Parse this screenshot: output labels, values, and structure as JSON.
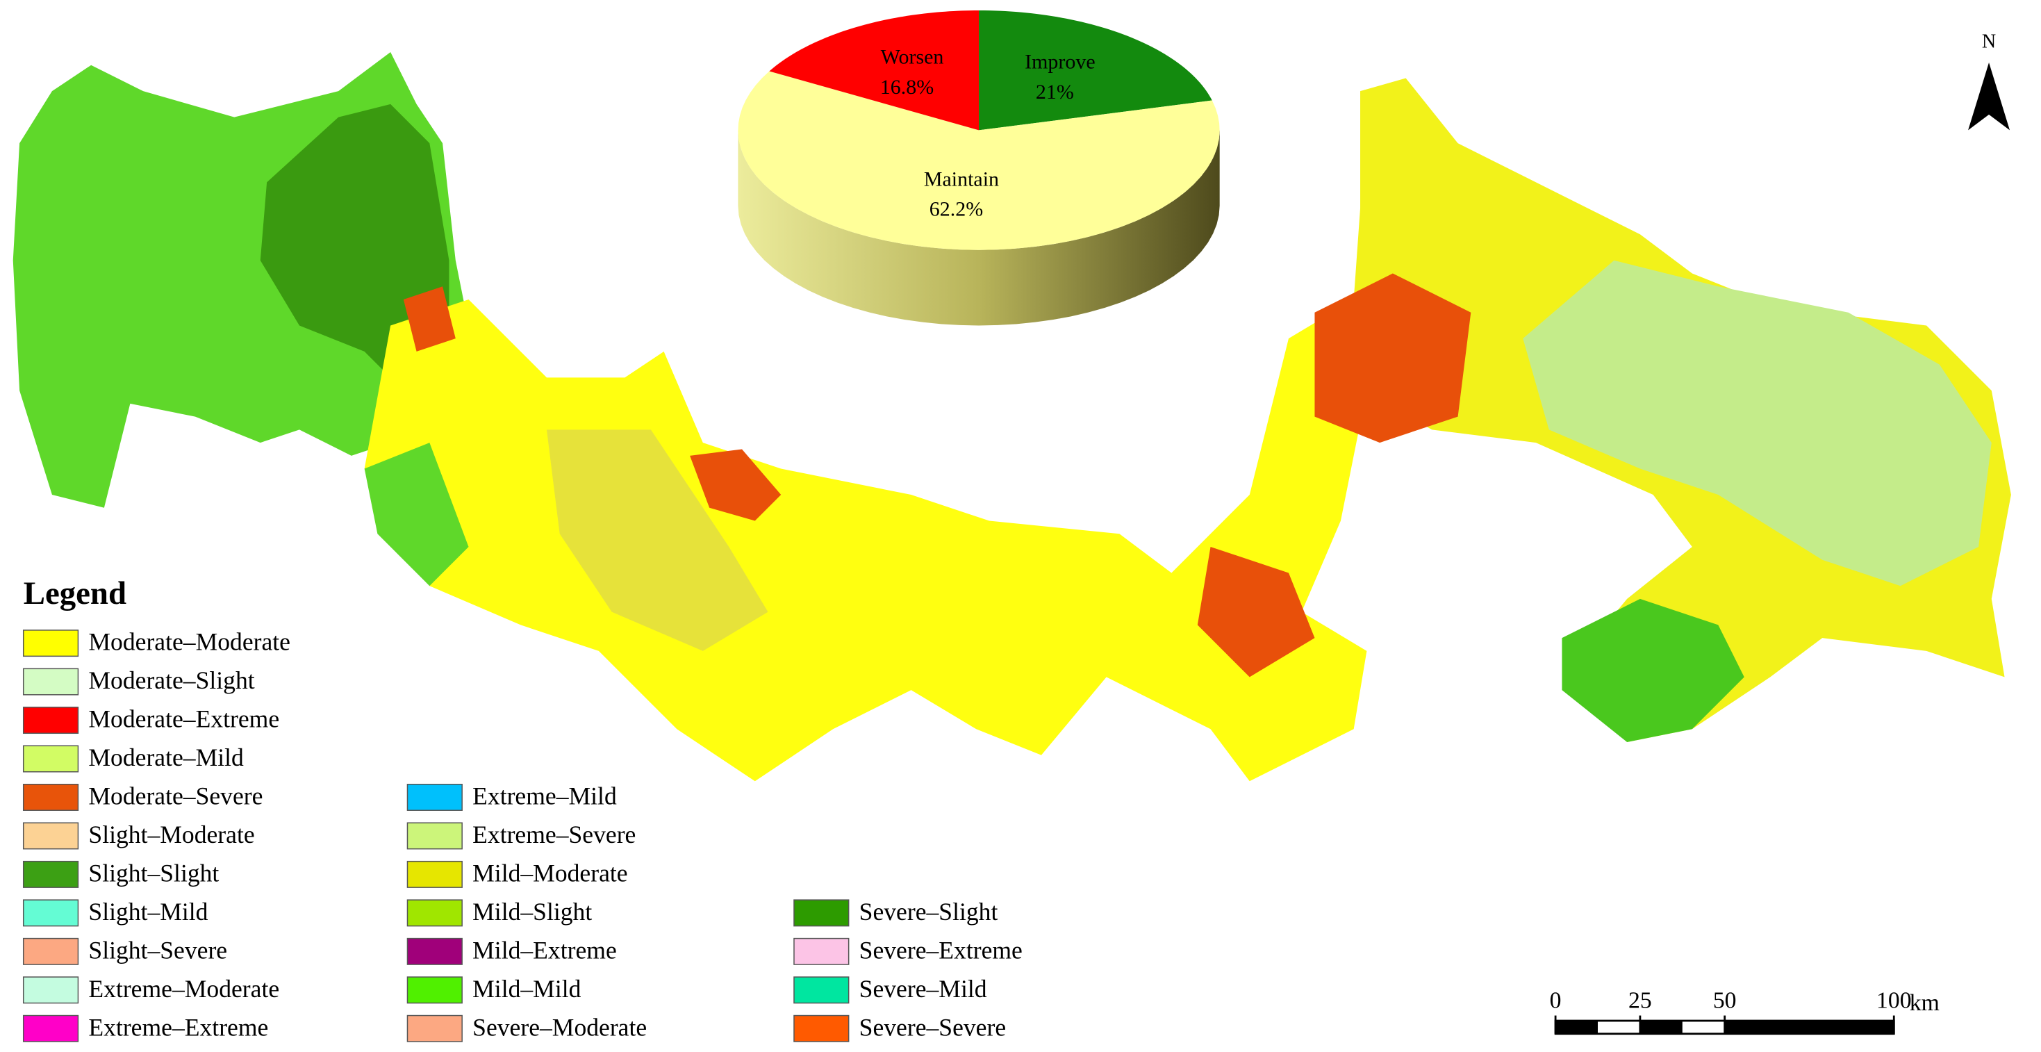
{
  "legend": {
    "title": "Legend",
    "columns": [
      [
        {
          "label": "Moderate–Moderate",
          "color": "#ffff00"
        },
        {
          "label": "Moderate–Slight",
          "color": "#d4fcc4"
        },
        {
          "label": "Moderate–Extreme",
          "color": "#ff0000"
        },
        {
          "label": "Moderate–Mild",
          "color": "#d2fc64"
        },
        {
          "label": "Moderate–Severe",
          "color": "#e8540a"
        },
        {
          "label": "Slight–Moderate",
          "color": "#fcd294"
        },
        {
          "label": "Slight–Slight",
          "color": "#3ca014"
        },
        {
          "label": "Slight–Mild",
          "color": "#64fcd4"
        },
        {
          "label": "Slight–Severe",
          "color": "#fca882"
        },
        {
          "label": "Extreme–Moderate",
          "color": "#c4fce0"
        },
        {
          "label": "Extreme–Extreme",
          "color": "#ff00c8"
        }
      ],
      [
        {
          "label": "Extreme–Mild",
          "color": "#00c0fc"
        },
        {
          "label": "Extreme–Severe",
          "color": "#ccf57a"
        },
        {
          "label": "Mild–Moderate",
          "color": "#e6e600"
        },
        {
          "label": "Mild–Slight",
          "color": "#a0e600"
        },
        {
          "label": "Mild–Extreme",
          "color": "#a0007a"
        },
        {
          "label": "Mild–Mild",
          "color": "#50f000"
        },
        {
          "label": "Severe–Moderate",
          "color": "#fca882"
        }
      ],
      [
        {
          "label": "Severe–Slight",
          "color": "#2d9b00"
        },
        {
          "label": "Severe–Extreme",
          "color": "#fcc4e6"
        },
        {
          "label": "Severe–Mild",
          "color": "#00e6a0"
        },
        {
          "label": "Severe–Severe",
          "color": "#ff5a00"
        }
      ]
    ]
  },
  "north_arrow": "N",
  "scale_bar": {
    "ticks": [
      0,
      25,
      50,
      100
    ],
    "xlim": [
      0,
      100
    ],
    "unit": "km"
  },
  "chart_data": {
    "type": "pie",
    "categories": [
      "Improve",
      "Maintain",
      "Worsen"
    ],
    "values": [
      21,
      62.2,
      16.8
    ],
    "value_labels": [
      "21%",
      "62.2%",
      "16.8%"
    ],
    "colors": [
      "#138a0e",
      "#ffff99",
      "#ff0000"
    ]
  }
}
